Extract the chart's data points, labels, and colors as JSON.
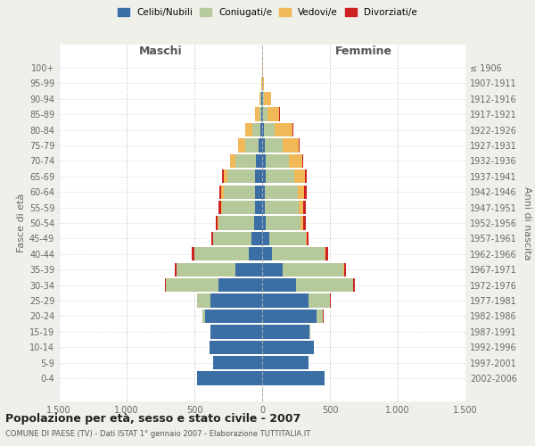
{
  "age_groups": [
    "0-4",
    "5-9",
    "10-14",
    "15-19",
    "20-24",
    "25-29",
    "30-34",
    "35-39",
    "40-44",
    "45-49",
    "50-54",
    "55-59",
    "60-64",
    "65-69",
    "70-74",
    "75-79",
    "80-84",
    "85-89",
    "90-94",
    "95-99",
    "100+"
  ],
  "birth_years": [
    "2002-2006",
    "1997-2001",
    "1992-1996",
    "1987-1991",
    "1982-1986",
    "1977-1981",
    "1972-1976",
    "1967-1971",
    "1962-1966",
    "1957-1961",
    "1952-1956",
    "1947-1951",
    "1942-1946",
    "1937-1941",
    "1932-1936",
    "1927-1931",
    "1922-1926",
    "1917-1921",
    "1912-1916",
    "1907-1911",
    "≤ 1906"
  ],
  "colors": {
    "celibe": "#3a6ea5",
    "coniugato": "#b5c99a",
    "vedovo": "#f0b856",
    "divorziato": "#cc2222"
  },
  "maschi": {
    "celibe": [
      480,
      360,
      390,
      380,
      420,
      380,
      320,
      200,
      100,
      80,
      60,
      55,
      55,
      55,
      45,
      25,
      15,
      8,
      5,
      2,
      2
    ],
    "coniugato": [
      0,
      0,
      0,
      0,
      20,
      100,
      390,
      430,
      400,
      280,
      260,
      240,
      230,
      200,
      150,
      100,
      60,
      15,
      5,
      0,
      0
    ],
    "vedovo": [
      0,
      0,
      0,
      0,
      0,
      0,
      0,
      0,
      0,
      5,
      8,
      10,
      15,
      30,
      40,
      50,
      50,
      30,
      10,
      2,
      0
    ],
    "divorziato": [
      0,
      0,
      0,
      0,
      2,
      3,
      8,
      12,
      18,
      10,
      15,
      20,
      15,
      8,
      5,
      3,
      2,
      0,
      0,
      0,
      0
    ]
  },
  "femmine": {
    "nubile": [
      460,
      340,
      380,
      350,
      400,
      340,
      250,
      150,
      70,
      50,
      25,
      20,
      20,
      25,
      25,
      20,
      15,
      8,
      5,
      2,
      2
    ],
    "coniugata": [
      0,
      0,
      0,
      5,
      50,
      160,
      420,
      450,
      390,
      270,
      260,
      250,
      240,
      210,
      170,
      130,
      80,
      30,
      8,
      2,
      0
    ],
    "vedova": [
      0,
      0,
      0,
      0,
      0,
      2,
      2,
      5,
      5,
      10,
      15,
      30,
      50,
      80,
      100,
      120,
      130,
      90,
      50,
      8,
      2
    ],
    "divorziata": [
      0,
      0,
      0,
      0,
      2,
      5,
      10,
      15,
      20,
      15,
      20,
      25,
      20,
      15,
      10,
      5,
      5,
      2,
      0,
      0,
      0
    ]
  },
  "xlim": 1500,
  "xticks": [
    -1500,
    -1000,
    -500,
    0,
    500,
    1000,
    1500
  ],
  "xticklabels": [
    "1.500",
    "1.000",
    "500",
    "0",
    "500",
    "1.000",
    "1.500"
  ],
  "title": "Popolazione per età, sesso e stato civile - 2007",
  "subtitle": "COMUNE DI PAESE (TV) - Dati ISTAT 1° gennaio 2007 - Elaborazione TUTTITALIA.IT",
  "ylabel_left": "Fasce di età",
  "ylabel_right": "Anni di nascita",
  "header_maschi": "Maschi",
  "header_femmine": "Femmine",
  "bg_color": "#f0f0eb",
  "plot_bg_color": "#ffffff"
}
